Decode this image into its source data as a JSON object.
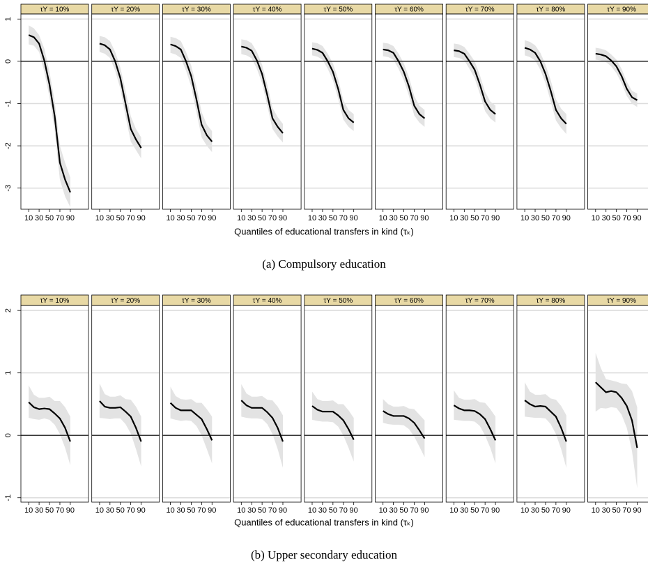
{
  "chart_data": [
    {
      "type": "line",
      "caption": "(a) Compulsory education",
      "xlabel": "Quantiles of educational transfers in kind (τₖ)",
      "x": [
        10,
        20,
        30,
        40,
        50,
        60,
        70,
        80,
        90
      ],
      "xlim": [
        -5,
        125
      ],
      "xticks": [
        10,
        30,
        50,
        70,
        90
      ],
      "ylim": [
        -3.5,
        1.12
      ],
      "yticks": [
        -3,
        -2,
        -1,
        0,
        1
      ],
      "grid": true,
      "reference_line": 0,
      "line_color": "#000000",
      "band_color": "#e3e3e3",
      "strip_color": "#e8d9a5",
      "panels": [
        {
          "title": "τY = 10%",
          "values": [
            0.62,
            0.57,
            0.42,
            0.02,
            -0.55,
            -1.3,
            -2.4,
            -2.8,
            -3.1
          ],
          "lower": [
            0.4,
            0.37,
            0.22,
            -0.25,
            -0.85,
            -1.65,
            -2.8,
            -3.2,
            -3.45
          ],
          "upper": [
            0.85,
            0.78,
            0.62,
            0.3,
            -0.25,
            -0.95,
            -2.0,
            -2.4,
            -2.75
          ]
        },
        {
          "title": "τY = 20%",
          "values": [
            0.42,
            0.38,
            0.28,
            0.0,
            -0.4,
            -1.0,
            -1.6,
            -1.85,
            -2.05
          ],
          "lower": [
            0.22,
            0.18,
            0.08,
            -0.22,
            -0.65,
            -1.3,
            -1.9,
            -2.1,
            -2.3
          ],
          "upper": [
            0.6,
            0.57,
            0.48,
            0.22,
            -0.15,
            -0.7,
            -1.3,
            -1.6,
            -1.8
          ]
        },
        {
          "title": "τY = 30%",
          "values": [
            0.4,
            0.36,
            0.28,
            0.0,
            -0.35,
            -0.9,
            -1.5,
            -1.75,
            -1.9
          ],
          "lower": [
            0.2,
            0.16,
            0.08,
            -0.22,
            -0.6,
            -1.2,
            -1.8,
            -2.0,
            -2.15
          ],
          "upper": [
            0.58,
            0.55,
            0.48,
            0.22,
            -0.1,
            -0.6,
            -1.2,
            -1.5,
            -1.65
          ]
        },
        {
          "title": "τY = 40%",
          "values": [
            0.35,
            0.32,
            0.25,
            0.02,
            -0.3,
            -0.8,
            -1.35,
            -1.55,
            -1.7
          ],
          "lower": [
            0.17,
            0.14,
            0.07,
            -0.18,
            -0.52,
            -1.05,
            -1.6,
            -1.78,
            -1.92
          ],
          "upper": [
            0.52,
            0.5,
            0.43,
            0.22,
            -0.08,
            -0.55,
            -1.1,
            -1.32,
            -1.48
          ]
        },
        {
          "title": "τY = 50%",
          "values": [
            0.3,
            0.27,
            0.2,
            0.0,
            -0.25,
            -0.65,
            -1.15,
            -1.35,
            -1.45
          ],
          "lower": [
            0.14,
            0.11,
            0.04,
            -0.18,
            -0.45,
            -0.88,
            -1.38,
            -1.55,
            -1.65
          ],
          "upper": [
            0.45,
            0.43,
            0.36,
            0.18,
            -0.05,
            -0.42,
            -0.92,
            -1.15,
            -1.25
          ]
        },
        {
          "title": "τY = 60%",
          "values": [
            0.28,
            0.26,
            0.2,
            0.0,
            -0.25,
            -0.6,
            -1.05,
            -1.25,
            -1.35
          ],
          "lower": [
            0.12,
            0.1,
            0.04,
            -0.18,
            -0.45,
            -0.82,
            -1.28,
            -1.45,
            -1.55
          ],
          "upper": [
            0.44,
            0.42,
            0.36,
            0.18,
            -0.05,
            -0.38,
            -0.82,
            -1.05,
            -1.15
          ]
        },
        {
          "title": "τY = 70%",
          "values": [
            0.26,
            0.24,
            0.18,
            0.0,
            -0.2,
            -0.55,
            -0.95,
            -1.15,
            -1.25
          ],
          "lower": [
            0.1,
            0.08,
            0.02,
            -0.18,
            -0.4,
            -0.77,
            -1.18,
            -1.35,
            -1.45
          ],
          "upper": [
            0.42,
            0.4,
            0.34,
            0.18,
            0.0,
            -0.33,
            -0.72,
            -0.95,
            -1.05
          ]
        },
        {
          "title": "τY = 80%",
          "values": [
            0.32,
            0.28,
            0.2,
            0.0,
            -0.3,
            -0.7,
            -1.15,
            -1.35,
            -1.48
          ],
          "lower": [
            0.14,
            0.1,
            0.02,
            -0.2,
            -0.52,
            -0.95,
            -1.4,
            -1.58,
            -1.72
          ],
          "upper": [
            0.5,
            0.46,
            0.38,
            0.2,
            -0.08,
            -0.45,
            -0.9,
            -1.12,
            -1.25
          ]
        },
        {
          "title": "τY = 90%",
          "values": [
            0.18,
            0.16,
            0.12,
            0.02,
            -0.12,
            -0.35,
            -0.65,
            -0.85,
            -0.92
          ],
          "lower": [
            0.04,
            0.02,
            -0.02,
            -0.12,
            -0.28,
            -0.52,
            -0.82,
            -1.0,
            -1.08
          ],
          "upper": [
            0.32,
            0.3,
            0.26,
            0.16,
            0.04,
            -0.18,
            -0.48,
            -0.7,
            -0.76
          ]
        }
      ]
    },
    {
      "type": "line",
      "caption": "(b) Upper secondary education",
      "xlabel": "Quantiles of educational transfers in kind (τₖ)",
      "x": [
        10,
        20,
        30,
        40,
        50,
        60,
        70,
        80,
        90
      ],
      "xlim": [
        -5,
        125
      ],
      "xticks": [
        10,
        30,
        50,
        70,
        90
      ],
      "ylim": [
        -1.07,
        2.08
      ],
      "yticks": [
        -1,
        0,
        1,
        2
      ],
      "grid": true,
      "reference_line": 0,
      "line_color": "#000000",
      "band_color": "#e3e3e3",
      "strip_color": "#e8d9a5",
      "panels": [
        {
          "title": "τY = 10%",
          "values": [
            0.53,
            0.45,
            0.42,
            0.43,
            0.42,
            0.35,
            0.27,
            0.12,
            -0.1
          ],
          "lower": [
            0.28,
            0.26,
            0.25,
            0.27,
            0.25,
            0.17,
            0.02,
            -0.2,
            -0.48
          ],
          "upper": [
            0.8,
            0.65,
            0.6,
            0.6,
            0.62,
            0.55,
            0.55,
            0.45,
            0.3
          ]
        },
        {
          "title": "τY = 20%",
          "values": [
            0.55,
            0.46,
            0.44,
            0.44,
            0.45,
            0.38,
            0.3,
            0.12,
            -0.1
          ],
          "lower": [
            0.28,
            0.27,
            0.26,
            0.27,
            0.27,
            0.18,
            0.03,
            -0.22,
            -0.5
          ],
          "upper": [
            0.83,
            0.66,
            0.62,
            0.62,
            0.64,
            0.58,
            0.57,
            0.46,
            0.3
          ]
        },
        {
          "title": "τY = 30%",
          "values": [
            0.52,
            0.44,
            0.4,
            0.4,
            0.4,
            0.33,
            0.26,
            0.1,
            -0.08
          ],
          "lower": [
            0.27,
            0.25,
            0.23,
            0.24,
            0.23,
            0.15,
            0.0,
            -0.22,
            -0.45
          ],
          "upper": [
            0.78,
            0.63,
            0.58,
            0.57,
            0.58,
            0.52,
            0.52,
            0.42,
            0.3
          ]
        },
        {
          "title": "τY = 40%",
          "values": [
            0.56,
            0.48,
            0.44,
            0.44,
            0.44,
            0.37,
            0.28,
            0.12,
            -0.1
          ],
          "lower": [
            0.3,
            0.28,
            0.27,
            0.27,
            0.26,
            0.18,
            0.02,
            -0.22,
            -0.52
          ],
          "upper": [
            0.82,
            0.67,
            0.62,
            0.62,
            0.63,
            0.57,
            0.56,
            0.46,
            0.32
          ]
        },
        {
          "title": "τY = 50%",
          "values": [
            0.47,
            0.41,
            0.38,
            0.38,
            0.38,
            0.32,
            0.24,
            0.1,
            -0.07
          ],
          "lower": [
            0.25,
            0.23,
            0.22,
            0.22,
            0.21,
            0.14,
            0.0,
            -0.2,
            -0.42
          ],
          "upper": [
            0.7,
            0.58,
            0.55,
            0.55,
            0.56,
            0.5,
            0.5,
            0.4,
            0.28
          ]
        },
        {
          "title": "τY = 60%",
          "values": [
            0.39,
            0.34,
            0.31,
            0.31,
            0.31,
            0.27,
            0.2,
            0.08,
            -0.05
          ],
          "lower": [
            0.2,
            0.18,
            0.17,
            0.17,
            0.16,
            0.1,
            -0.02,
            -0.18,
            -0.35
          ],
          "upper": [
            0.58,
            0.5,
            0.46,
            0.46,
            0.47,
            0.43,
            0.42,
            0.33,
            0.24
          ]
        },
        {
          "title": "τY = 70%",
          "values": [
            0.48,
            0.43,
            0.4,
            0.4,
            0.39,
            0.34,
            0.26,
            0.1,
            -0.08
          ],
          "lower": [
            0.25,
            0.24,
            0.23,
            0.23,
            0.22,
            0.15,
            0.0,
            -0.2,
            -0.45
          ],
          "upper": [
            0.72,
            0.6,
            0.57,
            0.57,
            0.58,
            0.53,
            0.52,
            0.42,
            0.3
          ]
        },
        {
          "title": "τY = 80%",
          "values": [
            0.56,
            0.5,
            0.46,
            0.47,
            0.46,
            0.38,
            0.3,
            0.12,
            -0.1
          ],
          "lower": [
            0.3,
            0.29,
            0.28,
            0.28,
            0.27,
            0.18,
            0.02,
            -0.22,
            -0.52
          ],
          "upper": [
            0.85,
            0.7,
            0.65,
            0.65,
            0.66,
            0.59,
            0.57,
            0.47,
            0.32
          ]
        },
        {
          "title": "τY = 90%",
          "values": [
            0.85,
            0.77,
            0.69,
            0.71,
            0.69,
            0.6,
            0.47,
            0.24,
            -0.2
          ],
          "lower": [
            0.38,
            0.44,
            0.43,
            0.45,
            0.44,
            0.33,
            0.12,
            -0.25,
            -0.85
          ],
          "upper": [
            1.32,
            1.08,
            0.9,
            0.88,
            0.86,
            0.83,
            0.82,
            0.71,
            0.45
          ]
        }
      ]
    }
  ]
}
